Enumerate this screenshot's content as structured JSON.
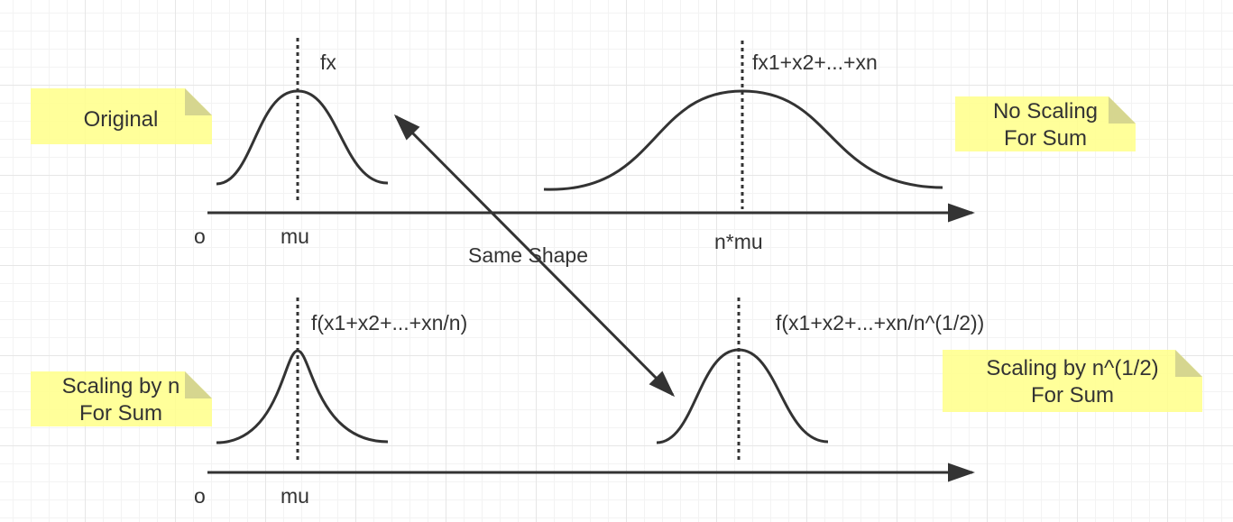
{
  "labels": {
    "f_original": "fx",
    "f_sum": "fx1+x2+...+xn",
    "f_mean": "f(x1+x2+...+xn/n)",
    "f_sqrt": "f(x1+x2+...+xn/n^(1/2))",
    "origin_top": "o",
    "mu_top": "mu",
    "nmu": "n*mu",
    "origin_bottom": "o",
    "mu_bottom": "mu",
    "same_shape": "Same Shape"
  },
  "notes": {
    "original": [
      "Original"
    ],
    "no_scaling": [
      "No Scaling",
      "For Sum"
    ],
    "scaling_n": [
      "Scaling by n",
      "For Sum"
    ],
    "scaling_sqrt": [
      "Scaling by n^(1/2)",
      "For Sum"
    ]
  },
  "colors": {
    "stroke": "#333333",
    "note": "#ffff88",
    "note_fold": "#d6d68f",
    "grid": "#e6e6e6"
  }
}
